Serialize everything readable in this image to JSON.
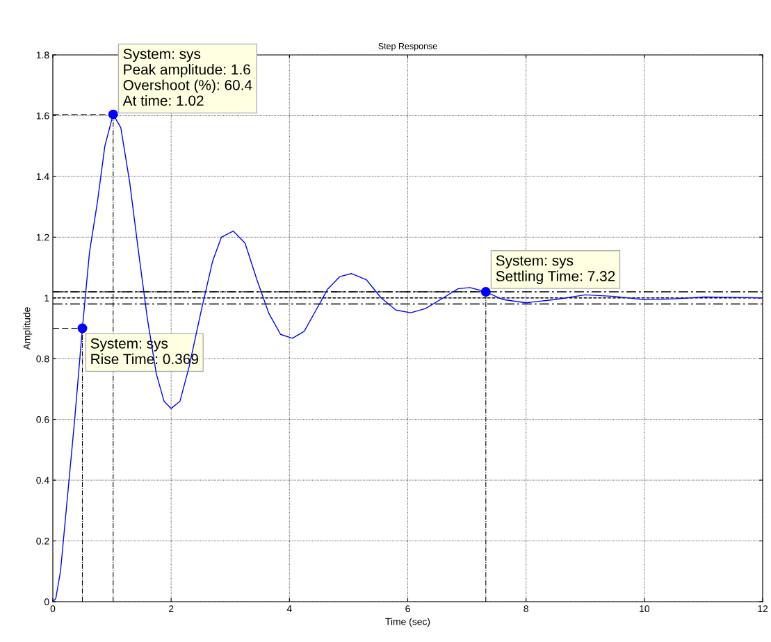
{
  "chart_data": {
    "type": "line",
    "title": "Step Response",
    "xlabel": "Time (sec)",
    "ylabel": "Amplitude",
    "x": [
      0,
      0.05,
      0.13,
      0.25,
      0.37,
      0.5,
      0.62,
      0.75,
      0.88,
      1.02,
      1.15,
      1.3,
      1.45,
      1.6,
      1.75,
      1.88,
      2.0,
      2.15,
      2.3,
      2.5,
      2.7,
      2.85,
      3.05,
      3.25,
      3.45,
      3.65,
      3.85,
      4.05,
      4.25,
      4.45,
      4.65,
      4.85,
      5.05,
      5.3,
      5.55,
      5.8,
      6.05,
      6.3,
      6.6,
      6.85,
      7.05,
      7.32,
      7.6,
      8.0,
      8.5,
      9.0,
      9.5,
      10.0,
      10.5,
      11.0,
      11.5,
      12.0
    ],
    "series": [
      {
        "color": "#0000ff",
        "values": [
          0,
          0.01,
          0.1,
          0.35,
          0.6,
          0.9,
          1.15,
          1.31,
          1.5,
          1.604,
          1.56,
          1.38,
          1.15,
          0.93,
          0.75,
          0.66,
          0.636,
          0.66,
          0.77,
          0.95,
          1.12,
          1.2,
          1.22,
          1.18,
          1.06,
          0.95,
          0.88,
          0.867,
          0.89,
          0.96,
          1.03,
          1.07,
          1.08,
          1.06,
          1.0,
          0.96,
          0.951,
          0.965,
          1.0,
          1.03,
          1.034,
          1.02,
          0.995,
          0.984,
          0.995,
          1.01,
          1.005,
          0.994,
          0.997,
          1.003,
          1.002,
          1.0
        ]
      }
    ],
    "xlim": [
      0,
      12
    ],
    "ylim": [
      0,
      1.8
    ],
    "xticks": [
      0,
      2,
      4,
      6,
      8,
      10,
      12
    ],
    "yticks": [
      0,
      0.2,
      0.4,
      0.6,
      0.8,
      1,
      1.2,
      1.4,
      1.6,
      1.8
    ],
    "grid": true,
    "marker": "none",
    "line_style": "solid",
    "ref_lines": [
      {
        "axis": "y",
        "value": 1,
        "line_style": "dashed"
      },
      {
        "axis": "y",
        "value": 0.98,
        "line_style": "dashdot"
      },
      {
        "axis": "y",
        "value": 1.02,
        "line_style": "dashdot"
      }
    ],
    "annotations": [
      {
        "text": "System: sys\nPeak amplitude: 1.6\nOvershoot (%): 60.4\nAt time: 1.02",
        "x": 1.02,
        "y": 1.604
      },
      {
        "text": "System: sys\nRise Time: 0.369",
        "x": 0.5,
        "y": 0.9
      },
      {
        "text": "System: sys\nSettling Time: 7.32",
        "x": 7.32,
        "y": 1.02
      }
    ]
  }
}
